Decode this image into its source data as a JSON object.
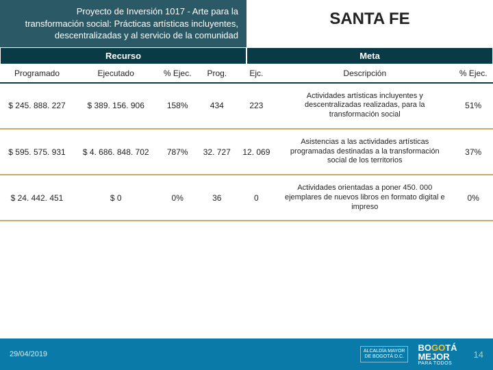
{
  "header": {
    "project_text": "Proyecto de Inversión 1017 - Arte para la transformación social: Prácticas artísticas incluyentes, descentralizadas y al servicio de la comunidad",
    "region_title": "SANTA FE"
  },
  "sections": {
    "recurso_label": "Recurso",
    "meta_label": "Meta"
  },
  "columns": {
    "programado": "Programado",
    "ejecutado": "Ejecutado",
    "pct_ejec_r": "% Ejec.",
    "prog": "Prog.",
    "ejc": "Ejc.",
    "descripcion": "Descripción",
    "pct_ejec_m": "% Ejec."
  },
  "rows": [
    {
      "programado": "$ 245. 888. 227",
      "ejecutado": "$ 389. 156. 906",
      "pct_r": "158%",
      "prog": "434",
      "ejc": "223",
      "desc": "Actividades artísticas incluyentes y descentralizadas realizadas, para la transformación social",
      "pct_m": "51%"
    },
    {
      "programado": "$ 595. 575. 931",
      "ejecutado": "$ 4. 686. 848. 702",
      "pct_r": "787%",
      "prog": "32. 727",
      "ejc": "12. 069",
      "desc": "Asistencias a las actividades artísticas programadas destinadas a la transformación social de los territorios",
      "pct_m": "37%"
    },
    {
      "programado": "$ 24. 442. 451",
      "ejecutado": "$ 0",
      "pct_r": "0%",
      "prog": "36",
      "ejc": "0",
      "desc": "Actividades orientadas a poner 450. 000 ejemplares de nuevos libros en formato digital e impreso",
      "pct_m": "0%"
    }
  ],
  "footer": {
    "date": "29/04/2019",
    "logo_a_line1": "ALCALDÍA MAYOR",
    "logo_a_line2": "DE BOGOTÁ D.C.",
    "logo_b_line1a": "BO",
    "logo_b_line1b": "GO",
    "logo_b_line1c": "TÁ",
    "logo_b_line2": "MEJOR",
    "logo_b_line3": "PARA TODOS",
    "page": "14"
  },
  "style": {
    "project_bg": "#2b5a66",
    "section_bg": "#0a3a45",
    "row_divider": "#c9a86a",
    "footer_bg": "#0a7aa8",
    "title_fontsize": 24,
    "body_fontsize": 12
  }
}
